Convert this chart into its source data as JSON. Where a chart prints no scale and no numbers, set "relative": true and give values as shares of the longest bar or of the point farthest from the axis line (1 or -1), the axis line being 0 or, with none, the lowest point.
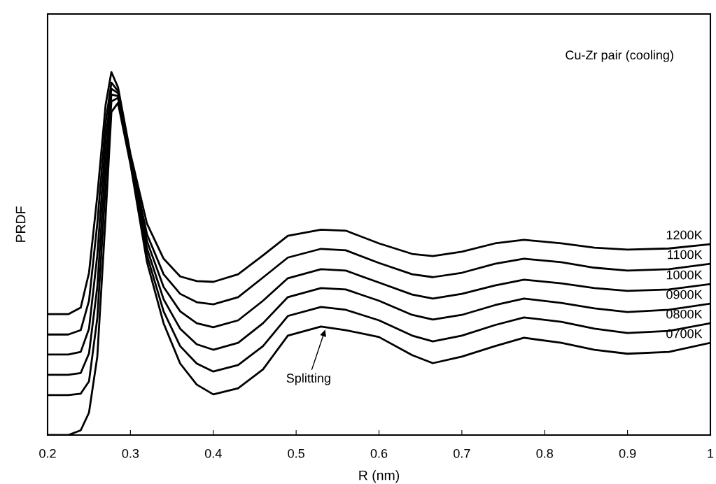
{
  "chart_data": {
    "type": "line",
    "xlabel": "R (nm)",
    "ylabel": "PRDF",
    "relative": true,
    "xlim": [
      0.2,
      1
    ],
    "xticks": [
      0.2,
      0.3,
      0.4,
      0.5,
      0.6,
      0.7,
      0.8,
      0.9,
      1
    ],
    "grid": false,
    "legend": false,
    "x": [
      0.2,
      0.225,
      0.24,
      0.25,
      0.26,
      0.27,
      0.277,
      0.285,
      0.3,
      0.32,
      0.34,
      0.36,
      0.38,
      0.4,
      0.43,
      0.46,
      0.49,
      0.53,
      0.56,
      0.6,
      0.64,
      0.665,
      0.7,
      0.74,
      0.775,
      0.82,
      0.86,
      0.9,
      0.95,
      1.0
    ],
    "series": [
      {
        "name": "1200K",
        "color": "#000000",
        "values": [
          0.333,
          0.333,
          0.351,
          0.447,
          0.659,
          0.909,
          1.0,
          0.958,
          0.775,
          0.582,
          0.486,
          0.437,
          0.424,
          0.422,
          0.443,
          0.495,
          0.549,
          0.566,
          0.563,
          0.528,
          0.499,
          0.493,
          0.505,
          0.528,
          0.538,
          0.528,
          0.516,
          0.511,
          0.514,
          0.526
        ]
      },
      {
        "name": "1100K",
        "color": "#000000",
        "values": [
          0.277,
          0.277,
          0.289,
          0.37,
          0.582,
          0.861,
          0.971,
          0.948,
          0.765,
          0.553,
          0.443,
          0.389,
          0.366,
          0.36,
          0.38,
          0.434,
          0.489,
          0.513,
          0.509,
          0.474,
          0.443,
          0.435,
          0.447,
          0.472,
          0.486,
          0.476,
          0.461,
          0.453,
          0.457,
          0.472
        ]
      },
      {
        "name": "1000K",
        "color": "#000000",
        "values": [
          0.222,
          0.222,
          0.229,
          0.293,
          0.495,
          0.813,
          0.954,
          0.942,
          0.759,
          0.534,
          0.408,
          0.341,
          0.308,
          0.297,
          0.316,
          0.37,
          0.432,
          0.457,
          0.453,
          0.42,
          0.387,
          0.376,
          0.389,
          0.412,
          0.428,
          0.418,
          0.405,
          0.397,
          0.401,
          0.416
        ]
      },
      {
        "name": "0900K",
        "color": "#000000",
        "values": [
          0.166,
          0.166,
          0.171,
          0.225,
          0.408,
          0.755,
          0.938,
          0.934,
          0.755,
          0.514,
          0.374,
          0.293,
          0.25,
          0.235,
          0.254,
          0.308,
          0.38,
          0.405,
          0.401,
          0.37,
          0.331,
          0.318,
          0.331,
          0.358,
          0.376,
          0.364,
          0.349,
          0.339,
          0.345,
          0.362
        ]
      },
      {
        "name": "0800K",
        "color": "#000000",
        "values": [
          0.11,
          0.11,
          0.114,
          0.148,
          0.322,
          0.688,
          0.919,
          0.929,
          0.751,
          0.495,
          0.341,
          0.245,
          0.197,
          0.175,
          0.193,
          0.245,
          0.328,
          0.353,
          0.345,
          0.316,
          0.274,
          0.258,
          0.274,
          0.303,
          0.324,
          0.312,
          0.293,
          0.281,
          0.287,
          0.308
        ]
      },
      {
        "name": "0700K",
        "color": "#000000",
        "values": [
          0,
          0,
          0.013,
          0.062,
          0.216,
          0.601,
          0.89,
          0.915,
          0.746,
          0.476,
          0.308,
          0.197,
          0.139,
          0.112,
          0.129,
          0.181,
          0.274,
          0.299,
          0.289,
          0.27,
          0.22,
          0.198,
          0.216,
          0.245,
          0.268,
          0.254,
          0.235,
          0.224,
          0.229,
          0.254
        ]
      }
    ],
    "annotations": [
      "Cu-Zr pair (cooling)",
      {
        "text": "Splitting",
        "x": 0.535,
        "y": 0.29
      }
    ]
  }
}
